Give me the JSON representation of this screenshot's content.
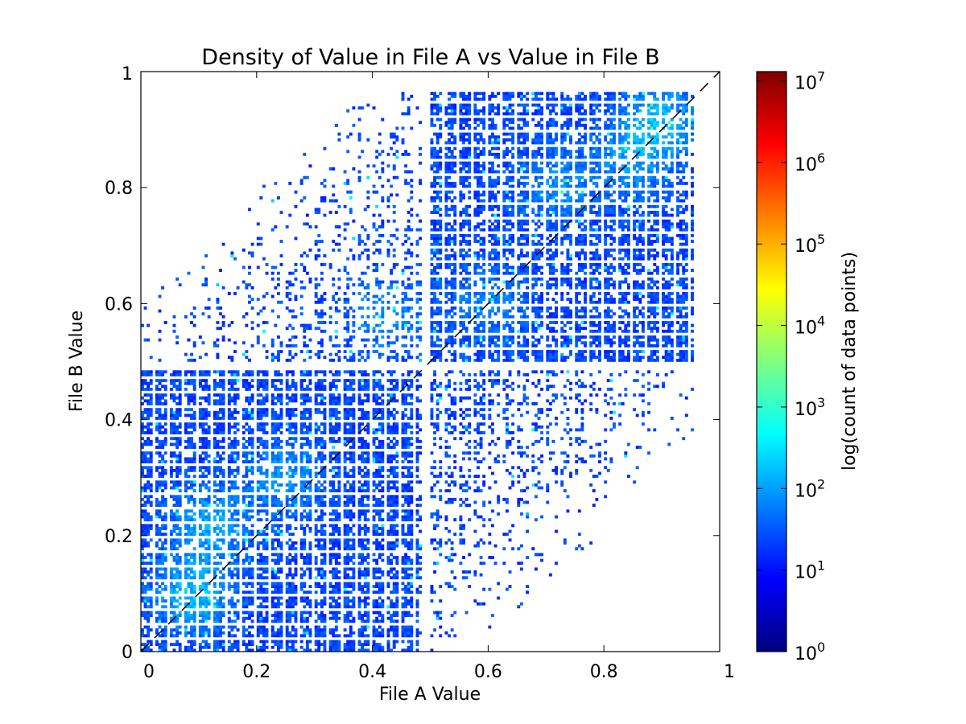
{
  "chart_data": {
    "type": "heatmap",
    "title": "Density of Value in File A vs Value in File B",
    "xlabel": "File A Value",
    "ylabel": "File B Value",
    "xlim": [
      0,
      1
    ],
    "ylim": [
      0,
      1
    ],
    "x_ticks": [
      {
        "value": 0,
        "label": "0"
      },
      {
        "value": 0.2,
        "label": "0.2"
      },
      {
        "value": 0.4,
        "label": "0.4"
      },
      {
        "value": 0.6,
        "label": "0.6"
      },
      {
        "value": 0.8,
        "label": "0.8"
      },
      {
        "value": 1,
        "label": "1"
      }
    ],
    "y_ticks": [
      {
        "value": 0,
        "label": "0"
      },
      {
        "value": 0.2,
        "label": "0.2"
      },
      {
        "value": 0.4,
        "label": "0.4"
      },
      {
        "value": 0.6,
        "label": "0.6"
      },
      {
        "value": 0.8,
        "label": "0.8"
      },
      {
        "value": 1,
        "label": "1"
      }
    ],
    "grid": false,
    "bins": 200,
    "reference_line": {
      "type": "identity",
      "style": "dashed",
      "color": "#000000"
    },
    "colorbar": {
      "label": "log(count of data points)",
      "scale": "log",
      "min": 1,
      "max": 13000000,
      "colormap": "jet",
      "ticks": [
        {
          "value": 1,
          "base": "10",
          "exp": "0"
        },
        {
          "value": 10,
          "base": "10",
          "exp": "1"
        },
        {
          "value": 100,
          "base": "10",
          "exp": "2"
        },
        {
          "value": 1000,
          "base": "10",
          "exp": "3"
        },
        {
          "value": 10000,
          "base": "10",
          "exp": "4"
        },
        {
          "value": 100000,
          "base": "10",
          "exp": "5"
        },
        {
          "value": 1000000,
          "base": "10",
          "exp": "6"
        },
        {
          "value": 10000000,
          "base": "10",
          "exp": "7"
        }
      ]
    },
    "colors": {
      "background": "#ffffff",
      "axis": "#000000",
      "jet": [
        "#00007f",
        "#0000ff",
        "#007fff",
        "#00ffff",
        "#7fff7f",
        "#ffff00",
        "#ff7f00",
        "#ff0000",
        "#7f0000"
      ]
    },
    "density_clusters": [
      {
        "x": 0.09,
        "y": 0.1,
        "weight": 1.0
      },
      {
        "x": 0.12,
        "y": 0.22,
        "weight": 0.8
      },
      {
        "x": 0.25,
        "y": 0.3,
        "weight": 0.7
      },
      {
        "x": 0.42,
        "y": 0.58,
        "weight": 0.65
      },
      {
        "x": 0.6,
        "y": 0.6,
        "weight": 0.55
      },
      {
        "x": 0.72,
        "y": 0.8,
        "weight": 0.6
      },
      {
        "x": 0.9,
        "y": 0.92,
        "weight": 0.9
      },
      {
        "x": 0.85,
        "y": 0.85,
        "weight": 0.7
      }
    ]
  }
}
